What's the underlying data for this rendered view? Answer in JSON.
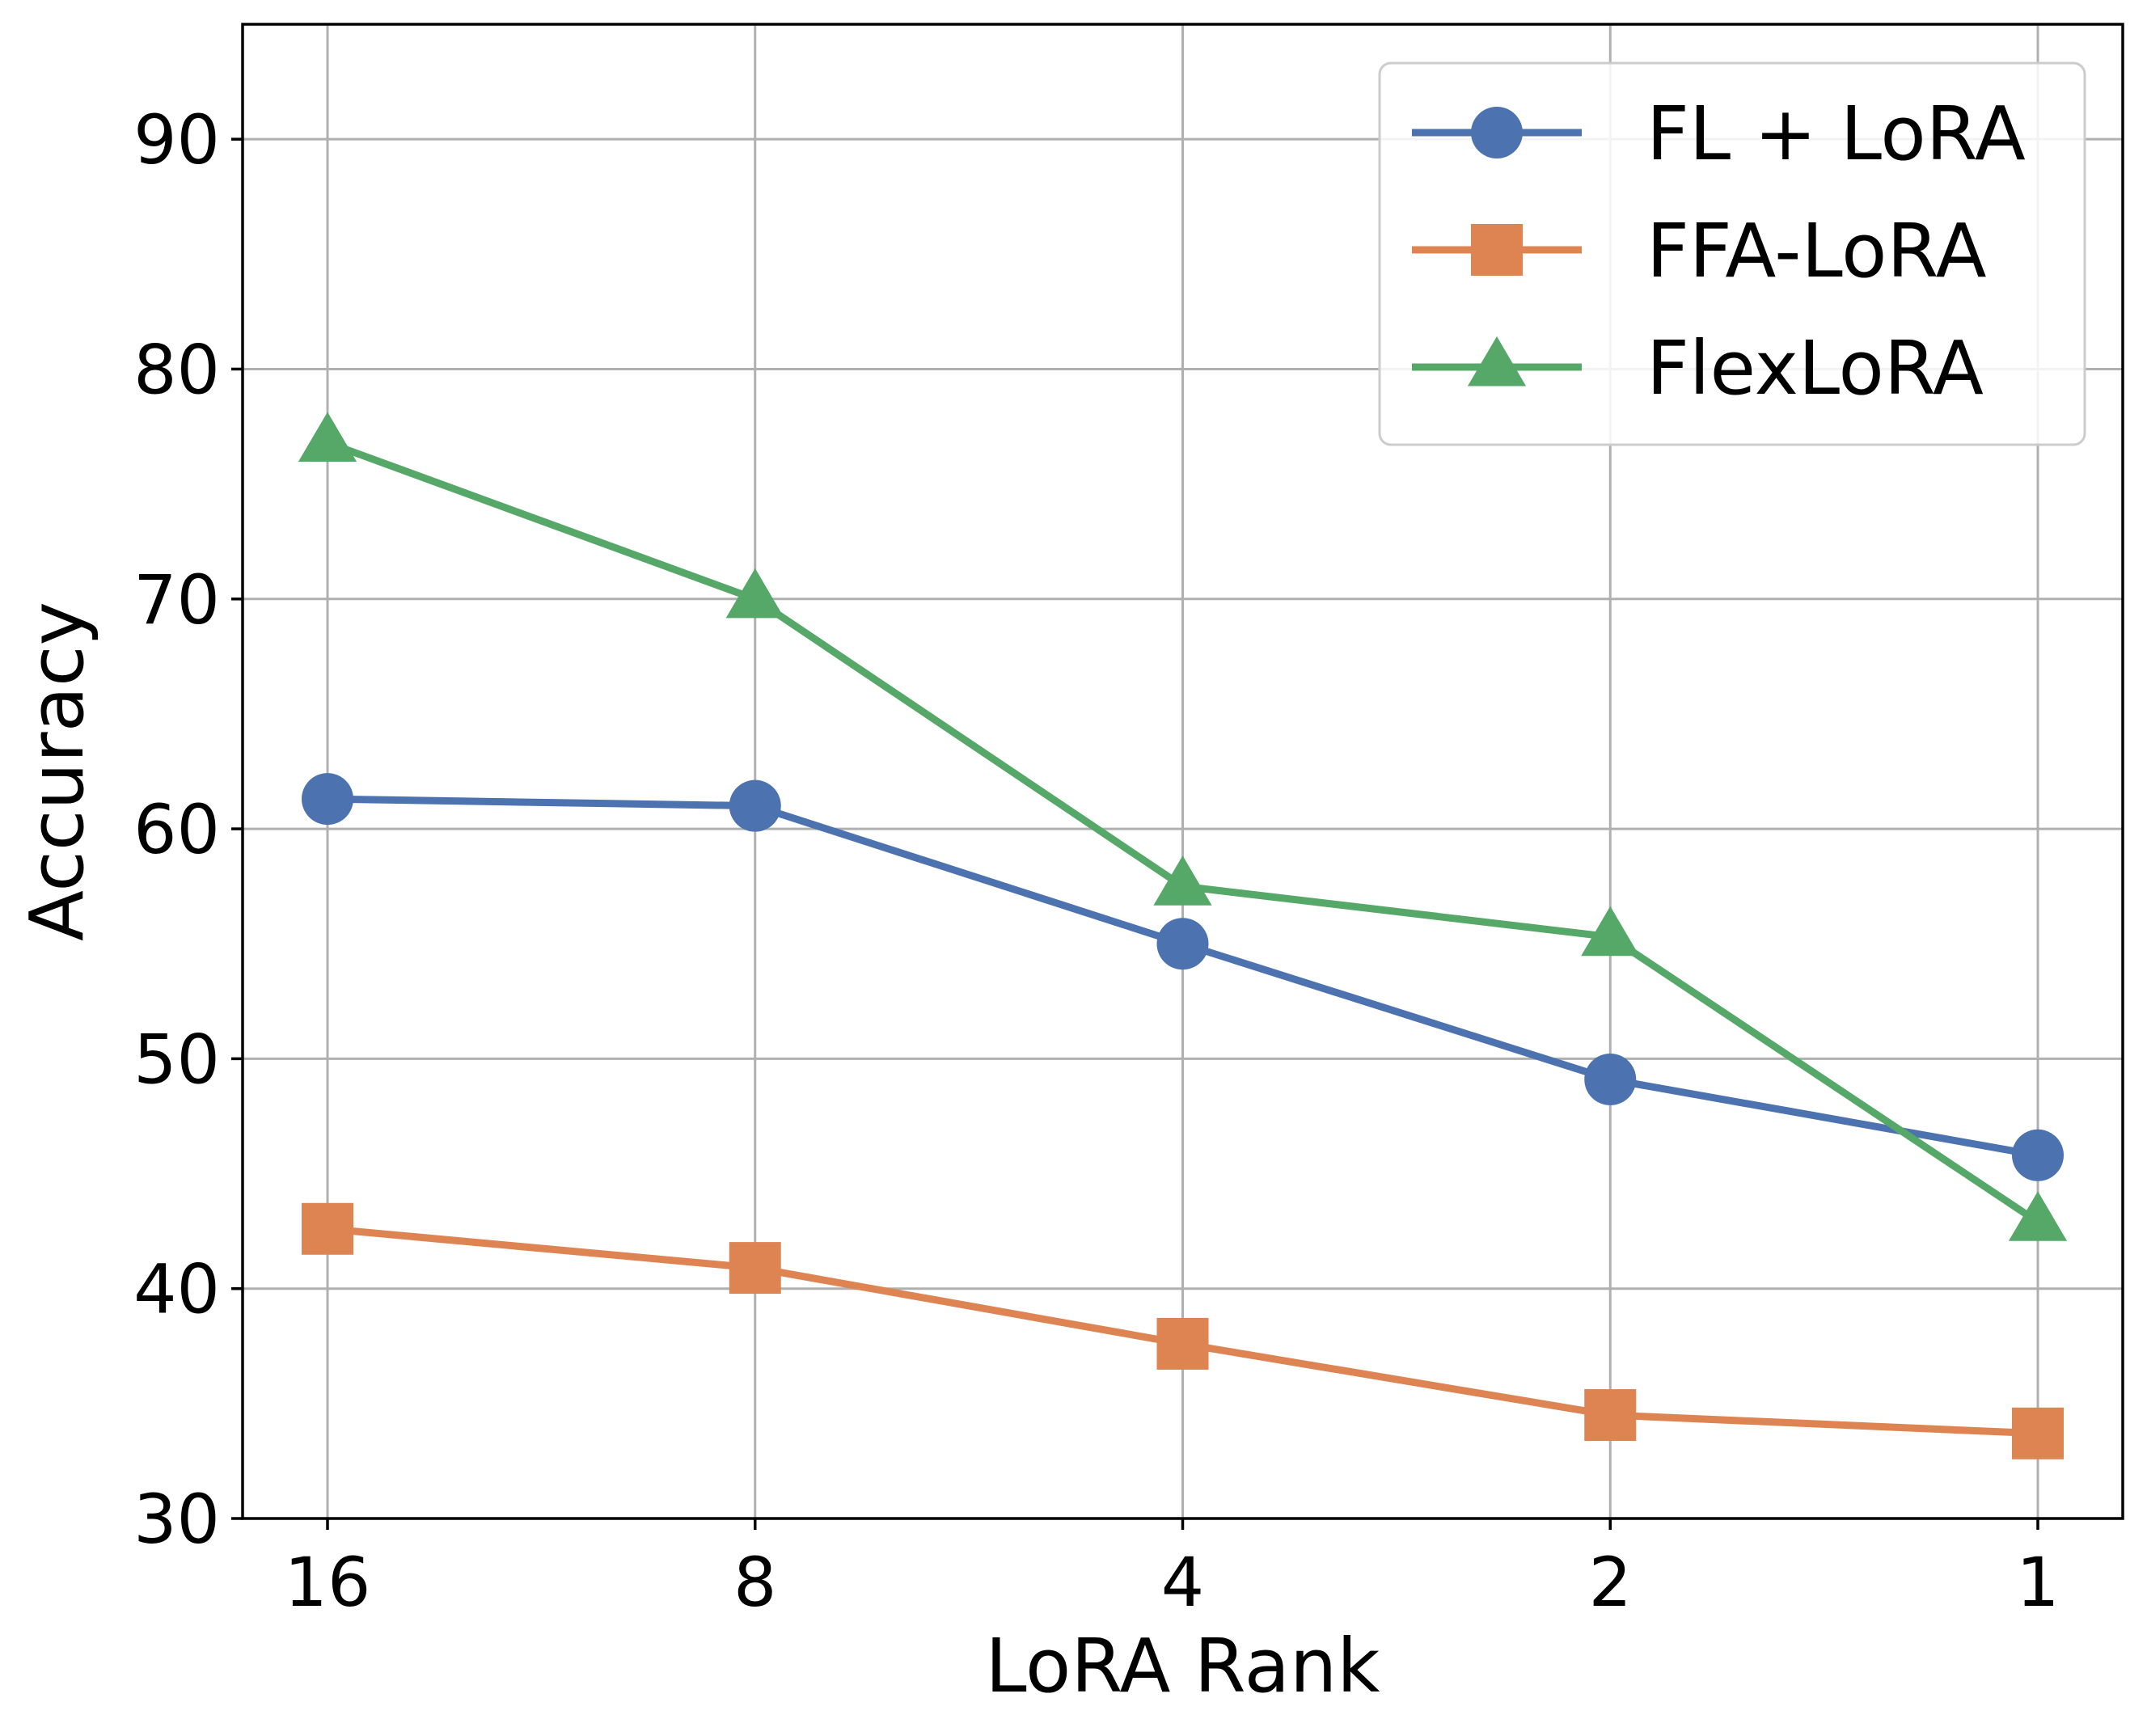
{
  "chart_data": {
    "type": "line",
    "title": "",
    "xlabel": "LoRA Rank",
    "ylabel": "Accuracy",
    "categories": [
      "16",
      "8",
      "4",
      "2",
      "1"
    ],
    "ylim": [
      30,
      95
    ],
    "yticks": [
      30,
      40,
      50,
      60,
      70,
      80,
      90
    ],
    "grid": true,
    "legend_position": "top-right",
    "series": [
      {
        "name": "FL + LoRA",
        "marker": "circle",
        "color": "#4c72b0",
        "values": [
          61.3,
          61.0,
          55.0,
          49.1,
          45.8
        ]
      },
      {
        "name": "FFA-LoRA",
        "marker": "square",
        "color": "#dd8452",
        "values": [
          42.6,
          40.9,
          37.6,
          34.5,
          33.7
        ]
      },
      {
        "name": "FlexLoRA",
        "marker": "triangle",
        "color": "#55a868",
        "values": [
          76.8,
          70.0,
          57.5,
          55.3,
          42.9
        ]
      }
    ]
  }
}
